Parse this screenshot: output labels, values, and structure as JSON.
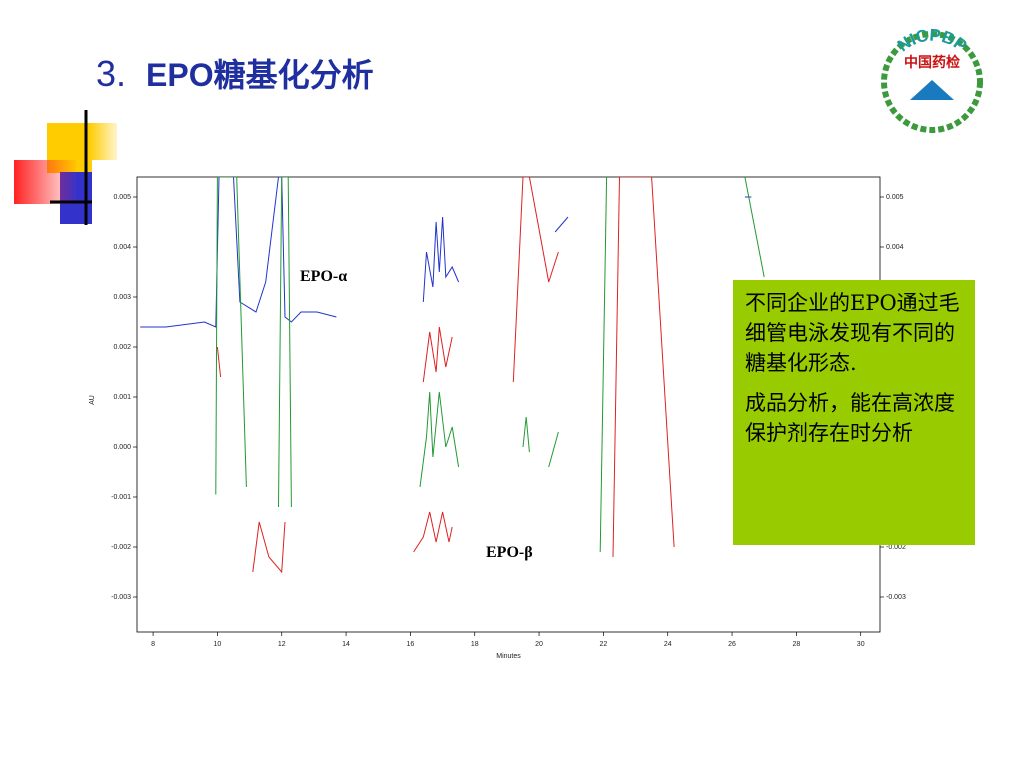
{
  "slide": {
    "title_number": "3.",
    "title": "EPO糖基化分析",
    "logo_arc": "NICPBP",
    "logo_text": "中国药检",
    "callout": [
      "不同企业的EPO通过毛细管电泳发现有不同的糖基化形态.",
      "成品分析，能在高浓度保护剂存在时分析"
    ]
  },
  "chart_data": {
    "type": "line",
    "x_label": "Minutes",
    "y_label": "AU",
    "annotations": [
      "EPO-α",
      "EPO-β"
    ],
    "xlim": [
      7.5,
      30.6
    ],
    "xticks": [
      8,
      10,
      12,
      14,
      16,
      18,
      20,
      22,
      24,
      26,
      28,
      30
    ],
    "ylim": [
      -0.0037,
      0.0054
    ],
    "yticks": [
      0.005,
      0.004,
      0.003,
      0.002,
      0.001,
      {
        "value": 0,
        "label": "0.000"
      },
      -0.001,
      -0.002,
      -0.003
    ],
    "series": [
      {
        "color": "#2233cc",
        "x": [
          7.6,
          8.4,
          9.6,
          9.95,
          10.05,
          10.5,
          10.7,
          11.2,
          11.5,
          11.9,
          12.0,
          12.1,
          12.3,
          12.6,
          13.1,
          13.7,
          15,
          16.4,
          16.5,
          16.7,
          16.8,
          16.9,
          17.0,
          17.1,
          17.3,
          17.5,
          19,
          20.5,
          20.9,
          24,
          26.4,
          26.6
        ],
        "values": [
          0.0024,
          0.0024,
          0.0025,
          0.0024,
          0.0054,
          0.0054,
          0.0029,
          0.0027,
          0.0033,
          0.0054,
          0.0054,
          0.0026,
          0.0025,
          0.0027,
          0.0027,
          0.0026,
          null,
          0.0029,
          0.0039,
          0.0032,
          0.0045,
          0.0035,
          0.0046,
          0.0034,
          0.0036,
          0.0033,
          null,
          0.0043,
          0.0046,
          null,
          0.005,
          0.005
        ]
      },
      {
        "color": "#dd2222",
        "x": [
          10.0,
          10.1,
          10.5,
          11.1,
          11.3,
          11.6,
          12.0,
          12.1,
          14,
          16.1,
          16.4,
          16.6,
          16.8,
          17.0,
          17.2,
          17.3,
          17.35,
          16.4,
          16.6,
          16.8,
          16.9,
          17.1,
          17.3,
          18,
          19.2,
          19.5,
          19.7,
          20.1,
          20.3,
          20.6,
          21,
          22.3,
          22.5,
          23.5,
          24.2
        ],
        "values": [
          0.002,
          0.0014,
          null,
          -0.0025,
          -0.0015,
          -0.0022,
          -0.0025,
          -0.0015,
          null,
          -0.0021,
          -0.0018,
          -0.0013,
          -0.0019,
          -0.0013,
          -0.0019,
          -0.0016,
          null,
          0.0013,
          0.0023,
          0.0015,
          0.0024,
          0.0016,
          0.0022,
          null,
          0.0013,
          0.0054,
          0.0054,
          0.004,
          0.0033,
          0.0039,
          null,
          -0.0022,
          0.0054,
          0.0054,
          -0.002
        ]
      },
      {
        "color": "#229933",
        "x": [
          9.95,
          10.0,
          10.6,
          10.9,
          11.4,
          11.9,
          12.0,
          12.2,
          12.3,
          14,
          16.3,
          16.5,
          16.6,
          16.7,
          16.9,
          17.1,
          17.3,
          17.5,
          18.5,
          19.5,
          19.6,
          19.7,
          20.0,
          20.3,
          20.6,
          21.5,
          21.9,
          22.1,
          25,
          26.4,
          27.0
        ],
        "values": [
          -0.00095,
          0.0054,
          0.0054,
          -0.0008,
          null,
          -0.0012,
          0.0054,
          0.0054,
          -0.0012,
          null,
          -0.0008,
          0.0002,
          0.0011,
          -0.0002,
          0.0011,
          0.0,
          0.0004,
          -0.0004,
          null,
          0.0,
          0.0006,
          -0.0001,
          null,
          -0.0004,
          0.0003,
          null,
          -0.0021,
          0.0054,
          null,
          0.0054,
          0.0034
        ]
      }
    ]
  }
}
